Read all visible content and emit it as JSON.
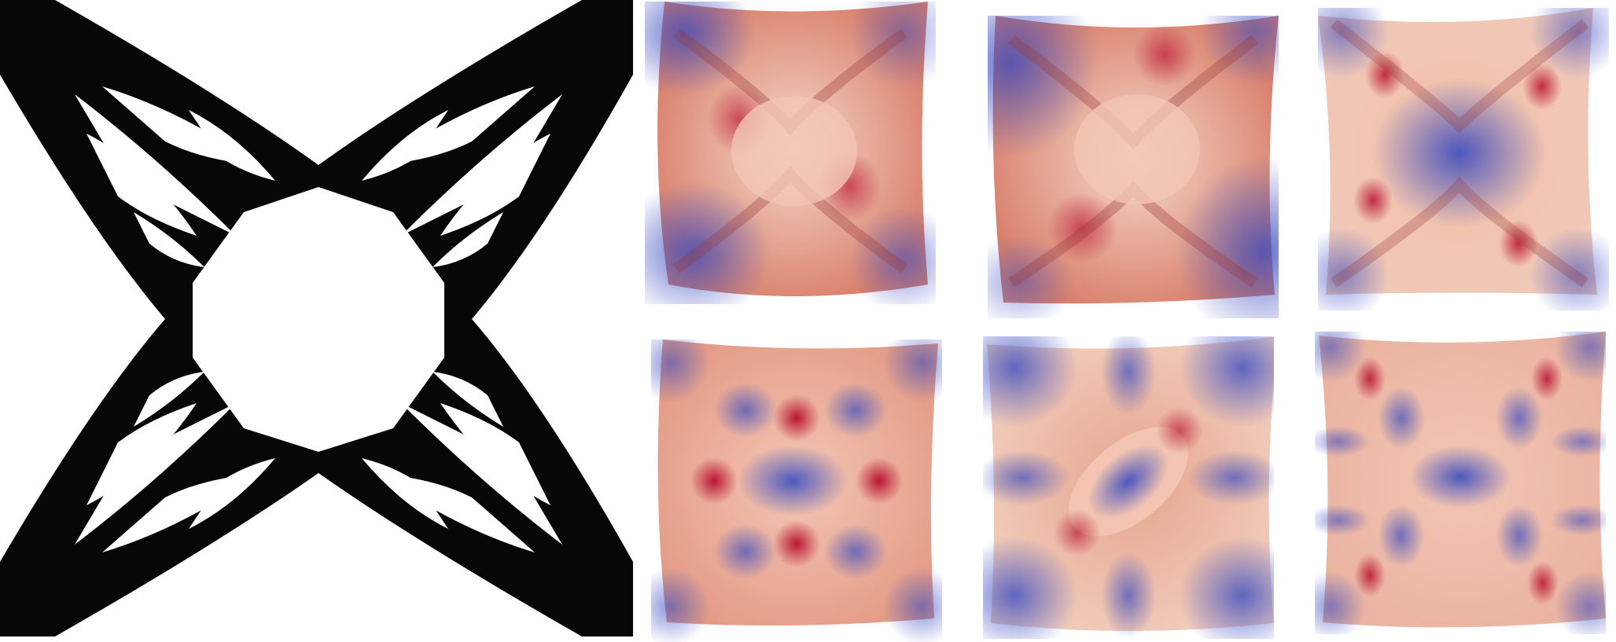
{
  "figure": {
    "panels": [
      {
        "name": "topology-structure",
        "kind": "binary-material-layout",
        "colors": {
          "solid": "#000000",
          "void": "#ffffff"
        }
      },
      {
        "name": "mode-shape",
        "index": 1,
        "pattern": "edge-midpoints-warm"
      },
      {
        "name": "mode-shape",
        "index": 2,
        "pattern": "edge-midpoints-warm"
      },
      {
        "name": "mode-shape",
        "index": 3,
        "pattern": "center-cool"
      },
      {
        "name": "mode-shape",
        "index": 4,
        "pattern": "horizontal-lobes"
      },
      {
        "name": "mode-shape",
        "index": 5,
        "pattern": "diagonal-lobes"
      },
      {
        "name": "mode-shape",
        "index": 6,
        "pattern": "higher-order"
      }
    ],
    "colormap": {
      "low": "#3b4cc0",
      "mid": "#f2dcd0",
      "high": "#b40426"
    }
  }
}
